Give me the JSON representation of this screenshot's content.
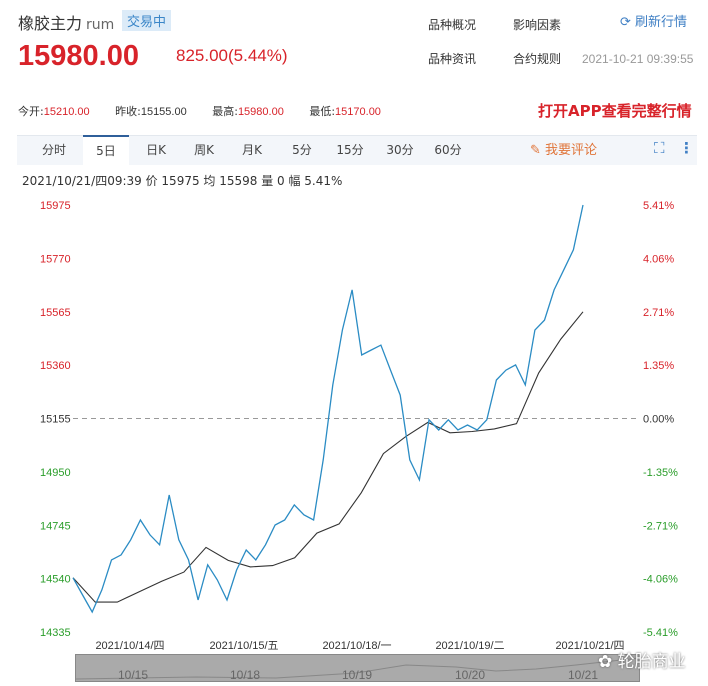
{
  "header": {
    "name": "橡胶主力",
    "code": "rum",
    "status": "交易中",
    "price": "15980.00",
    "change": "825.00(5.44%)",
    "links": [
      "品种概况",
      "影响因素",
      "品种资讯",
      "合约规则"
    ],
    "refresh": "刷新行情",
    "timestamp": "2021-10-21 09:39:55"
  },
  "stats": {
    "open_label": "今开:",
    "open": "15210.00",
    "prev_label": "昨收:",
    "prev": "15155.00",
    "high_label": "最高:",
    "high": "15980.00",
    "low_label": "最低:",
    "low": "15170.00"
  },
  "app_banner": "打开APP查看完整行情",
  "tabs": [
    "分时",
    "5日",
    "日K",
    "周K",
    "月K",
    "5分",
    "15分",
    "30分",
    "60分"
  ],
  "active_tab": "5日",
  "comment_label": "我要评论",
  "info_line": "2021/10/21/四09:39  价 15975  均 15598  量 0  幅 5.41%",
  "watermark": "轮胎商业",
  "navigator_labels": [
    "10/15",
    "10/18",
    "10/19",
    "10/20",
    "10/21"
  ],
  "colors": {
    "up": "#d8232a",
    "down": "#2a9d2a",
    "price_line": "#2b8cc4",
    "avg_line": "#333333"
  },
  "chart_data": {
    "type": "line",
    "ylim": [
      14335,
      15975
    ],
    "baseline": 15155,
    "y_ticks": [
      "15975",
      "15770",
      "15565",
      "15360",
      "15155",
      "14950",
      "14745",
      "14540",
      "14335"
    ],
    "y_pct_ticks": [
      "5.41%",
      "4.06%",
      "2.71%",
      "1.35%",
      "0.00%",
      "-1.35%",
      "-2.71%",
      "-4.06%",
      "-5.41%"
    ],
    "x_labels": [
      "2021/10/14/四",
      "2021/10/15/五",
      "2021/10/18/一",
      "2021/10/19/二",
      "2021/10/21/四"
    ],
    "series": [
      {
        "values": [
          14543,
          14477,
          14412,
          14497,
          14612,
          14631,
          14689,
          14765,
          14708,
          14670,
          14861,
          14689,
          14612,
          14458,
          14593,
          14535,
          14458,
          14573,
          14650,
          14612,
          14670,
          14746,
          14765,
          14823,
          14785,
          14765,
          14996,
          15284,
          15495,
          15649,
          15399,
          15418,
          15437,
          15341,
          15245,
          14996,
          14919,
          15150,
          15111,
          15150,
          15111,
          15130,
          15111,
          15150,
          15303,
          15341,
          15361,
          15284,
          15495,
          15533,
          15649,
          15726,
          15803,
          15975
        ]
      },
      {
        "values": [
          14543,
          14450,
          14450,
          14490,
          14530,
          14565,
          14660,
          14610,
          14585,
          14590,
          14620,
          14715,
          14750,
          14870,
          15020,
          15085,
          15140,
          15100,
          15105,
          15115,
          15135,
          15330,
          15460,
          15565
        ]
      }
    ]
  }
}
